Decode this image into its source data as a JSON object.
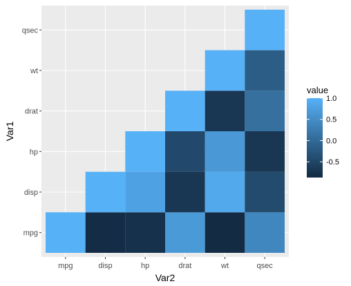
{
  "chart_data": {
    "type": "heatmap",
    "x_categories": [
      "mpg",
      "disp",
      "hp",
      "drat",
      "wt",
      "qsec"
    ],
    "y_categories": [
      "mpg",
      "disp",
      "hp",
      "drat",
      "wt",
      "qsec"
    ],
    "xlabel": "Var2",
    "ylabel": "Var1",
    "cells": [
      {
        "x": "mpg",
        "y": "mpg",
        "value": 1.0
      },
      {
        "x": "disp",
        "y": "mpg",
        "value": -0.85
      },
      {
        "x": "hp",
        "y": "mpg",
        "value": -0.78
      },
      {
        "x": "drat",
        "y": "mpg",
        "value": 0.68
      },
      {
        "x": "wt",
        "y": "mpg",
        "value": -0.87
      },
      {
        "x": "qsec",
        "y": "mpg",
        "value": 0.42
      },
      {
        "x": "disp",
        "y": "disp",
        "value": 1.0
      },
      {
        "x": "hp",
        "y": "disp",
        "value": 0.79
      },
      {
        "x": "drat",
        "y": "disp",
        "value": -0.71
      },
      {
        "x": "wt",
        "y": "disp",
        "value": 0.89
      },
      {
        "x": "qsec",
        "y": "disp",
        "value": -0.43
      },
      {
        "x": "hp",
        "y": "hp",
        "value": 1.0
      },
      {
        "x": "drat",
        "y": "hp",
        "value": -0.45
      },
      {
        "x": "wt",
        "y": "hp",
        "value": 0.66
      },
      {
        "x": "qsec",
        "y": "hp",
        "value": -0.71
      },
      {
        "x": "drat",
        "y": "drat",
        "value": 1.0
      },
      {
        "x": "wt",
        "y": "drat",
        "value": -0.71
      },
      {
        "x": "qsec",
        "y": "drat",
        "value": 0.09
      },
      {
        "x": "wt",
        "y": "wt",
        "value": 1.0
      },
      {
        "x": "qsec",
        "y": "wt",
        "value": -0.17
      },
      {
        "x": "qsec",
        "y": "qsec",
        "value": 1.0
      }
    ],
    "legend": {
      "title": "value",
      "breaks": [
        1.0,
        0.5,
        0.0,
        -0.5
      ],
      "labels": [
        "1.0",
        "0.5",
        "0.0",
        "-0.5"
      ],
      "range": [
        -0.87,
        1.0
      ],
      "low_color": "#132B43",
      "high_color": "#56B1F7",
      "placement": "right"
    },
    "panel_background": "#EBEBEB",
    "grid": true
  }
}
